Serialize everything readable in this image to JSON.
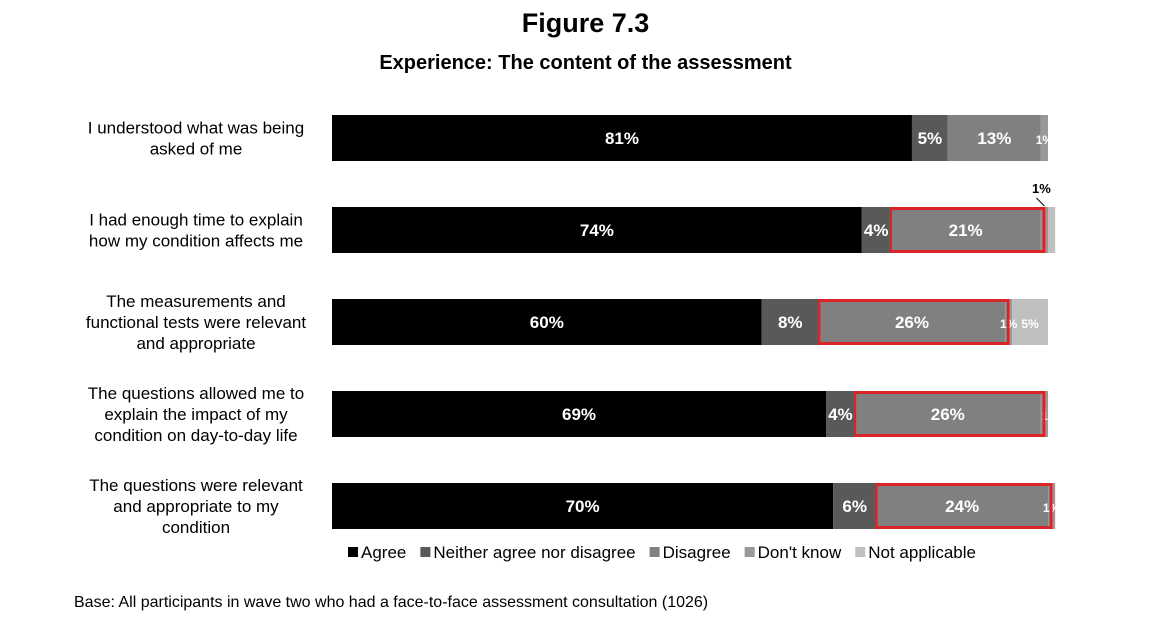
{
  "figure": {
    "title": "Figure 7.3",
    "subtitle": "Experience: The content of the assessment",
    "footnote": "Base: All participants in wave two who had a face-to-face assessment consultation (1026)"
  },
  "colors": {
    "agree": "#000000",
    "neither": "#595959",
    "disagree": "#808080",
    "dont_know": "#999999",
    "not_applicable": "#bfbfbf",
    "highlight": "#d9252a"
  },
  "chart_data": {
    "type": "bar",
    "orientation": "horizontal",
    "stacked": true,
    "percent_scale": [
      0,
      100
    ],
    "grid": false,
    "legend_position": "bottom",
    "categories": [
      "I understood what was being asked of me",
      "I had enough time to explain how my condition affects me",
      "The measurements and functional tests were relevant and appropriate",
      "The questions allowed me to explain the impact of my condition on day-to-day life",
      "The questions were relevant and appropriate to my condition"
    ],
    "category_label_lines": [
      [
        "I understood what was being",
        "asked of me"
      ],
      [
        "I had enough time to explain",
        "how my condition affects me"
      ],
      [
        "The measurements and",
        "functional tests were relevant",
        "and appropriate"
      ],
      [
        "The questions allowed me to",
        "explain the impact of my",
        "condition on day-to-day life"
      ],
      [
        "The questions were relevant",
        "and appropriate to my",
        "condition"
      ]
    ],
    "series": [
      {
        "name": "Agree",
        "color_key": "agree",
        "values": [
          81,
          74,
          60,
          69,
          70
        ],
        "labels": [
          "81%",
          "74%",
          "60%",
          "69%",
          "70%"
        ]
      },
      {
        "name": "Neither agree nor disagree",
        "color_key": "neither",
        "values": [
          5,
          4,
          8,
          4,
          6
        ],
        "labels": [
          "5%",
          "4%",
          "8%",
          "4%",
          "6%"
        ]
      },
      {
        "name": "Disagree",
        "color_key": "disagree",
        "values": [
          13,
          21,
          26,
          26,
          24
        ],
        "labels": [
          "13%",
          "21%",
          "26%",
          "26%",
          "24%"
        ]
      },
      {
        "name": "Don't know",
        "color_key": "dont_know",
        "values": [
          1,
          1,
          1,
          1,
          1
        ],
        "labels": [
          "1%",
          "",
          "1%",
          "1",
          "1%"
        ]
      },
      {
        "name": "Not applicable",
        "color_key": "not_applicable",
        "values": [
          0,
          1,
          5,
          0,
          0
        ],
        "labels": [
          "",
          "",
          "5%",
          "",
          ""
        ]
      }
    ],
    "annotations": [
      {
        "text": "1%",
        "category_index": 1,
        "series": "Don't know",
        "note": "callout above bar with leader line"
      }
    ],
    "highlighted_series": "Disagree",
    "highlighted_rows": [
      1,
      2,
      3,
      4
    ]
  }
}
